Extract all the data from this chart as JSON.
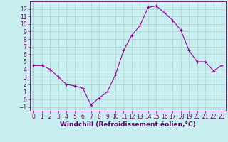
{
  "x": [
    0,
    1,
    2,
    3,
    4,
    5,
    6,
    7,
    8,
    9,
    10,
    11,
    12,
    13,
    14,
    15,
    16,
    17,
    18,
    19,
    20,
    21,
    22,
    23
  ],
  "y": [
    4.5,
    4.5,
    4.0,
    3.0,
    2.0,
    1.8,
    1.5,
    -0.7,
    0.2,
    1.0,
    3.3,
    6.5,
    8.5,
    9.8,
    12.2,
    12.4,
    11.5,
    10.5,
    9.2,
    6.5,
    5.0,
    5.0,
    3.8,
    4.5
  ],
  "line_color": "#990099",
  "marker": "+",
  "marker_size": 3,
  "marker_linewidth": 0.8,
  "background_color": "#c8eef0",
  "grid_color": "#aacccc",
  "xlabel": "Windchill (Refroidissement éolien,°C)",
  "xlabel_fontsize": 6.5,
  "ylim": [
    -1.5,
    13
  ],
  "xlim": [
    -0.5,
    23.5
  ],
  "yticks": [
    -1,
    0,
    1,
    2,
    3,
    4,
    5,
    6,
    7,
    8,
    9,
    10,
    11,
    12
  ],
  "xticks": [
    0,
    1,
    2,
    3,
    4,
    5,
    6,
    7,
    8,
    9,
    10,
    11,
    12,
    13,
    14,
    15,
    16,
    17,
    18,
    19,
    20,
    21,
    22,
    23
  ],
  "tick_fontsize": 5.5,
  "tick_color": "#660066",
  "spine_color": "#660066",
  "line_width": 0.8
}
